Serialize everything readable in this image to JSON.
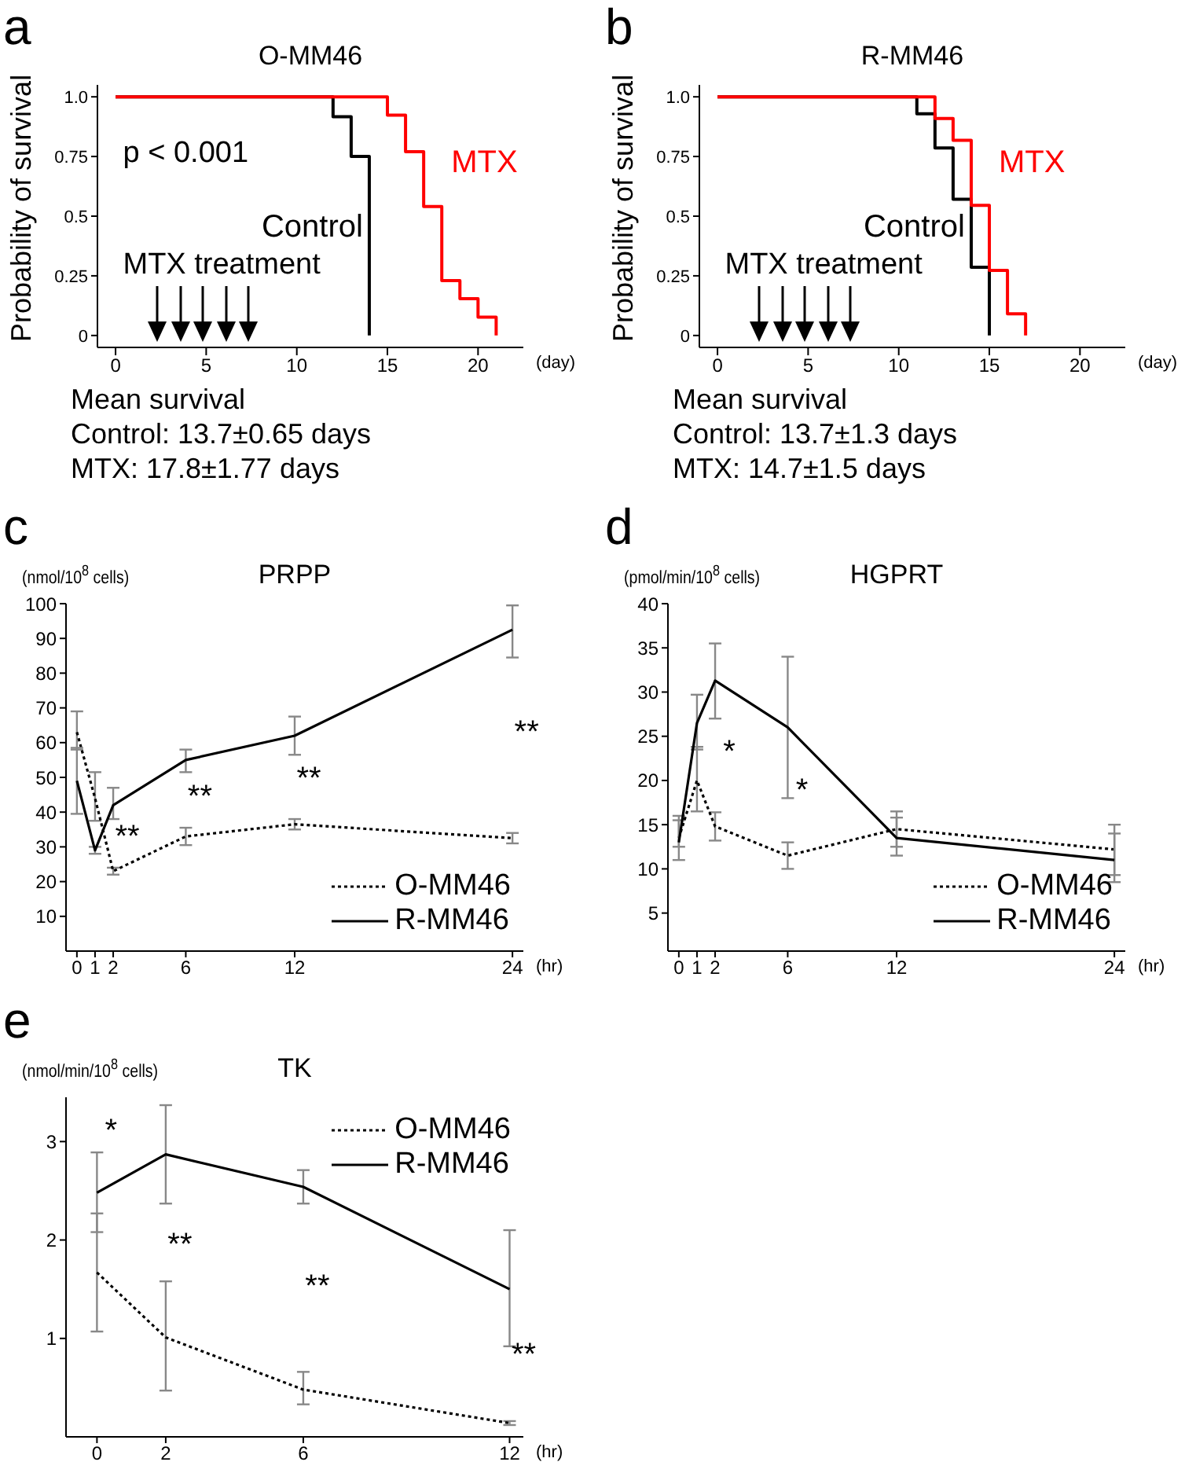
{
  "chart_data": [
    {
      "type": "step",
      "title": "O-MM46",
      "ylabel": "Probability of survival",
      "xlabel": "(day)",
      "xlim": [
        -1,
        22.5
      ],
      "xticks": [
        0,
        5,
        10,
        15,
        20
      ],
      "ylim": [
        -0.05,
        1.05
      ],
      "yticks": [
        0,
        0.25,
        0.5,
        0.75,
        {
          "value": 1,
          "label": "1.0"
        }
      ],
      "legend": false,
      "marker": "none",
      "series": [
        {
          "name": "Control",
          "color": "#000000",
          "x": [
            0,
            12,
            13,
            14
          ],
          "values": [
            1,
            0.917,
            0.75,
            0
          ]
        },
        {
          "name": "MTX",
          "color": "#ff0000",
          "x": [
            0,
            15,
            16,
            17,
            18,
            19,
            20,
            21
          ],
          "values": [
            1,
            0.923,
            0.77,
            0.54,
            0.23,
            0.154,
            0.077,
            0
          ]
        }
      ],
      "annotations": [
        "a",
        "p < 0.001",
        "MTX treatment",
        "Mean survival",
        "Control: 13.7±0.65 days",
        "MTX: 17.8±1.77 days"
      ]
    },
    {
      "type": "step",
      "title": "R-MM46",
      "ylabel": "Probability of survival",
      "xlabel": "(day)",
      "xlim": [
        -1,
        22.5
      ],
      "xticks": [
        0,
        5,
        10,
        15,
        20
      ],
      "ylim": [
        -0.05,
        1.05
      ],
      "yticks": [
        0,
        0.25,
        0.5,
        0.75,
        {
          "value": 1,
          "label": "1.0"
        }
      ],
      "legend": false,
      "marker": "none",
      "series": [
        {
          "name": "Control",
          "color": "#000000",
          "x": [
            0,
            11,
            12,
            13,
            14,
            15
          ],
          "values": [
            1,
            0.929,
            0.786,
            0.571,
            0.286,
            0
          ]
        },
        {
          "name": "MTX",
          "color": "#ff0000",
          "x": [
            0,
            12,
            13,
            14,
            15,
            16,
            17
          ],
          "values": [
            1,
            0.909,
            0.818,
            0.545,
            0.273,
            0.091,
            0
          ]
        }
      ],
      "annotations": [
        "b",
        "MTX treatment",
        "Mean survival",
        "Control: 13.7±1.3 days",
        "MTX: 14.7±1.5 days"
      ]
    },
    {
      "type": "line",
      "title": "PRPP",
      "ylabel": "(nmol/10$^{8}$ cells)",
      "xlabel": "(hr)",
      "xlim": [
        -0.6,
        24.6
      ],
      "xticks": [
        0,
        1,
        2,
        6,
        12,
        24
      ],
      "ylim": [
        0,
        100
      ],
      "yticks": [
        10,
        20,
        30,
        40,
        50,
        60,
        70,
        80,
        90,
        100
      ],
      "legend": "bottom right",
      "marker": "none",
      "x": [
        0,
        1,
        2,
        6,
        12,
        24
      ],
      "series": [
        {
          "name": "O-MM46",
          "color": "#000000",
          "line_style": "dotted",
          "values": [
            63,
            44,
            23,
            33,
            36.5,
            32.5
          ],
          "errors": [
            [
              58,
              69
            ],
            [
              37.5,
              51.5
            ],
            [
              22,
              24
            ],
            [
              30.5,
              35.5
            ],
            [
              35,
              38
            ],
            [
              31,
              34
            ]
          ]
        },
        {
          "name": "R-MM46",
          "color": "#000000",
          "line_style": "solid",
          "values": [
            49,
            29,
            42,
            55,
            62,
            92.5
          ],
          "errors": [
            [
              39.5,
              58.5
            ],
            [
              28,
              30
            ],
            [
              38,
              47
            ],
            [
              51.5,
              58
            ],
            [
              56.5,
              67.5
            ],
            [
              84.5,
              99.5
            ]
          ]
        }
      ],
      "annotations": [
        "c",
        "**",
        "**",
        "**",
        "**"
      ]
    },
    {
      "type": "line",
      "title": "HGPRT",
      "ylabel": "(pmol/min/10$^{8}$ cells)",
      "xlabel": "(hr)",
      "xlim": [
        -0.6,
        24.6
      ],
      "xticks": [
        0,
        1,
        2,
        6,
        12,
        24
      ],
      "ylim": [
        0.7,
        40
      ],
      "yticks": [
        5,
        10,
        15,
        20,
        25,
        30,
        35,
        40
      ],
      "legend": "bottom right",
      "marker": "none",
      "x": [
        0,
        1,
        2,
        6,
        12,
        24
      ],
      "series": [
        {
          "name": "O-MM46",
          "color": "#000000",
          "line_style": "dotted",
          "values": [
            13.5,
            20,
            14.8,
            11.5,
            14.5,
            12.2
          ],
          "errors": [
            [
              12.5,
              15.5
            ],
            [
              16.5,
              23.8
            ],
            [
              13.2,
              16.4
            ],
            [
              10,
              13
            ],
            [
              12.5,
              16.5
            ],
            [
              9.3,
              15
            ]
          ]
        },
        {
          "name": "R-MM46",
          "color": "#000000",
          "line_style": "solid",
          "values": [
            13,
            26.5,
            31.3,
            26,
            13.5,
            11
          ],
          "errors": [
            [
              11,
              16
            ],
            [
              23.5,
              29.7
            ],
            [
              27,
              35.5
            ],
            [
              18,
              34
            ],
            [
              11.5,
              15.8
            ],
            [
              8.5,
              14
            ]
          ]
        }
      ],
      "annotations": [
        "d",
        "*",
        "*"
      ]
    },
    {
      "type": "line",
      "title": "TK",
      "ylabel": "(nmol/min/10$^{8}$ cells)",
      "xlabel": "(hr)",
      "xlim": [
        -0.9,
        12.4
      ],
      "xticks": [
        0,
        2,
        6,
        12
      ],
      "ylim": [
        0,
        3.45
      ],
      "yticks": [
        1,
        2,
        3
      ],
      "legend": "top right",
      "marker": "none",
      "x": [
        0,
        2,
        6,
        12
      ],
      "series": [
        {
          "name": "O-MM46",
          "color": "#000000",
          "line_style": "dotted",
          "values": [
            1.67,
            1.01,
            0.48,
            0.14
          ],
          "errors": [
            [
              1.07,
              2.27
            ],
            [
              0.47,
              1.58
            ],
            [
              0.33,
              0.66
            ],
            [
              0.12,
              0.16
            ]
          ]
        },
        {
          "name": "R-MM46",
          "color": "#000000",
          "line_style": "solid",
          "values": [
            2.48,
            2.87,
            2.54,
            1.5
          ],
          "errors": [
            [
              2.08,
              2.89
            ],
            [
              2.37,
              3.37
            ],
            [
              2.37,
              2.71
            ],
            [
              0.92,
              2.1
            ]
          ]
        }
      ],
      "annotations": [
        "e",
        "*",
        "**",
        "**",
        "**"
      ]
    }
  ]
}
